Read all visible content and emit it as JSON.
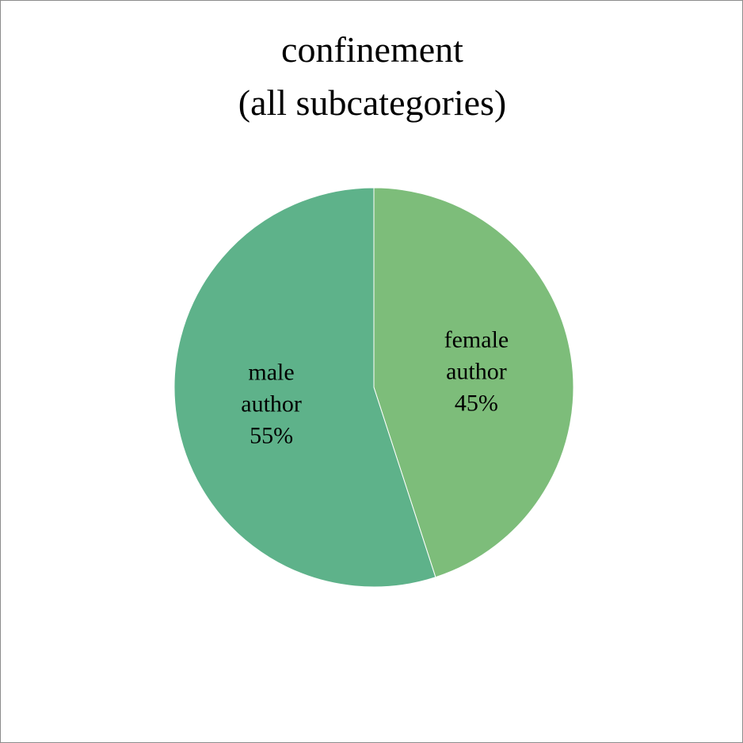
{
  "chart_data": {
    "type": "pie",
    "title": [
      "confinement",
      "(all subcategories)"
    ],
    "slices": [
      {
        "label_lines": [
          "female",
          "author"
        ],
        "percent_label": "45%",
        "value": 45,
        "color": "#7dbd7a"
      },
      {
        "label_lines": [
          "male",
          "author"
        ],
        "percent_label": "55%",
        "value": 55,
        "color": "#5eb28a"
      }
    ],
    "start": "12 o'clock",
    "direction": "clockwise",
    "legend": "none"
  }
}
